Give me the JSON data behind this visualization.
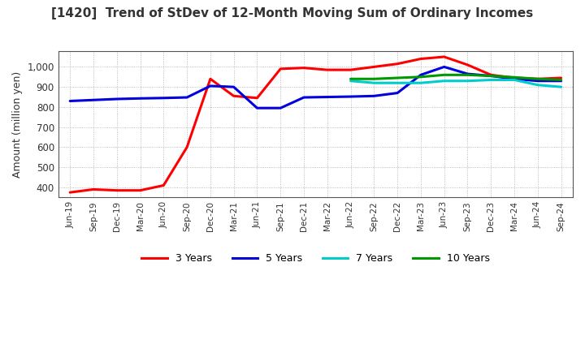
{
  "title": "[1420]  Trend of StDev of 12-Month Moving Sum of Ordinary Incomes",
  "ylabel": "Amount (million yen)",
  "yticks": [
    400,
    500,
    600,
    700,
    800,
    900,
    1000
  ],
  "ylim": [
    350,
    1080
  ],
  "background_color": "#ffffff",
  "grid_color": "#aaaaaa",
  "series": {
    "3 Years": {
      "color": "#ff0000",
      "x_idx": [
        0,
        1,
        2,
        3,
        4,
        5,
        6,
        7,
        8,
        9,
        10,
        11,
        12,
        13,
        14,
        15,
        16,
        17,
        18,
        19,
        20,
        21
      ],
      "y": [
        375,
        390,
        385,
        385,
        410,
        600,
        940,
        855,
        845,
        990,
        995,
        985,
        985,
        1000,
        1015,
        1040,
        1050,
        1010,
        960,
        945,
        940,
        945
      ]
    },
    "5 Years": {
      "color": "#0000dd",
      "x_idx": [
        0,
        1,
        2,
        3,
        4,
        5,
        6,
        7,
        8,
        9,
        10,
        11,
        12,
        13,
        14,
        15,
        16,
        17,
        18,
        19,
        20,
        21
      ],
      "y": [
        830,
        835,
        840,
        843,
        845,
        848,
        905,
        900,
        795,
        795,
        848,
        850,
        852,
        855,
        870,
        960,
        1000,
        965,
        955,
        940,
        930,
        930
      ]
    },
    "7 Years": {
      "color": "#00cccc",
      "x_idx": [
        12,
        13,
        14,
        15,
        16,
        17,
        18,
        19,
        20,
        21
      ],
      "y": [
        930,
        920,
        920,
        920,
        930,
        930,
        935,
        935,
        910,
        900
      ]
    },
    "10 Years": {
      "color": "#009900",
      "x_idx": [
        12,
        13,
        14,
        15,
        16,
        17,
        18,
        19,
        20,
        21
      ],
      "y": [
        940,
        940,
        945,
        950,
        960,
        960,
        955,
        948,
        940,
        935
      ]
    }
  },
  "x_labels": [
    "Jun-19",
    "Sep-19",
    "Dec-19",
    "Mar-20",
    "Jun-20",
    "Sep-20",
    "Dec-20",
    "Mar-21",
    "Jun-21",
    "Sep-21",
    "Dec-21",
    "Mar-22",
    "Jun-22",
    "Sep-22",
    "Dec-22",
    "Mar-23",
    "Jun-23",
    "Sep-23",
    "Dec-23",
    "Mar-24",
    "Jun-24",
    "Sep-24"
  ],
  "legend_labels": [
    "3 Years",
    "5 Years",
    "7 Years",
    "10 Years"
  ],
  "legend_colors": [
    "#ff0000",
    "#0000dd",
    "#00cccc",
    "#009900"
  ]
}
